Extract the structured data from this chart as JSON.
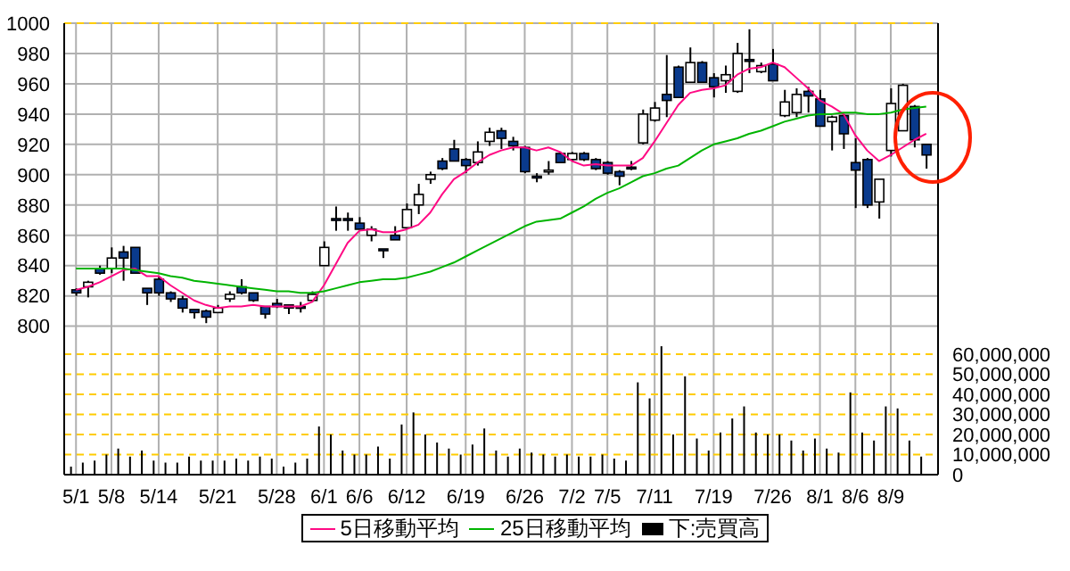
{
  "chart_data": {
    "type": "candlestick",
    "categories": [
      "5/1",
      null,
      null,
      "5/8",
      null,
      null,
      null,
      "5/14",
      null,
      null,
      null,
      null,
      "5/21",
      null,
      null,
      null,
      null,
      "5/28",
      null,
      null,
      null,
      "6/1",
      null,
      null,
      "6/6",
      null,
      null,
      null,
      "6/12",
      null,
      null,
      null,
      null,
      "6/19",
      null,
      null,
      null,
      null,
      "6/26",
      null,
      null,
      null,
      "7/2",
      null,
      null,
      "7/5",
      null,
      null,
      null,
      "7/11",
      null,
      null,
      null,
      null,
      "7/19",
      null,
      null,
      null,
      null,
      "7/26",
      null,
      null,
      null,
      "8/1",
      null,
      null,
      "8/6",
      null,
      null,
      "8/9",
      null,
      null,
      null
    ],
    "ohlc": [
      [
        824,
        825,
        820,
        822
      ],
      [
        826,
        830,
        819,
        829
      ],
      [
        838,
        840,
        834,
        835
      ],
      [
        838,
        852,
        835,
        845
      ],
      [
        849,
        853,
        830,
        845
      ],
      [
        852,
        852,
        835,
        835
      ],
      [
        825,
        825,
        814,
        822
      ],
      [
        831,
        833,
        820,
        822
      ],
      [
        822,
        823,
        816,
        818
      ],
      [
        818,
        820,
        809,
        812
      ],
      [
        811,
        811,
        805,
        809
      ],
      [
        810,
        811,
        802,
        806
      ],
      [
        809,
        814,
        809,
        812
      ],
      [
        818,
        823,
        816,
        821
      ],
      [
        826,
        831,
        821,
        822
      ],
      [
        822,
        822,
        816,
        817
      ],
      [
        813,
        813,
        805,
        808
      ],
      [
        815,
        818,
        812,
        813
      ],
      [
        814,
        814,
        808,
        812
      ],
      [
        813,
        816,
        809,
        812
      ],
      [
        817,
        823,
        816,
        821
      ],
      [
        840,
        856,
        840,
        852
      ],
      [
        871,
        879,
        863,
        870
      ],
      [
        871,
        875,
        863,
        870
      ],
      [
        868,
        872,
        864,
        864
      ],
      [
        860,
        866,
        856,
        864
      ],
      [
        851,
        851,
        845,
        850
      ],
      [
        860,
        866,
        857,
        857
      ],
      [
        865,
        881,
        865,
        877
      ],
      [
        880,
        894,
        874,
        887
      ],
      [
        897,
        902,
        894,
        900
      ],
      [
        909,
        911,
        903,
        904
      ],
      [
        917,
        923,
        909,
        909
      ],
      [
        910,
        911,
        901,
        906
      ],
      [
        908,
        922,
        906,
        915
      ],
      [
        922,
        931,
        919,
        928
      ],
      [
        929,
        931,
        917,
        924
      ],
      [
        922,
        925,
        916,
        919
      ],
      [
        918,
        919,
        901,
        902
      ],
      [
        899,
        901,
        895,
        898
      ],
      [
        902,
        909,
        900,
        903
      ],
      [
        914,
        915,
        908,
        908
      ],
      [
        910,
        915,
        909,
        914
      ],
      [
        914,
        915,
        909,
        910
      ],
      [
        910,
        911,
        903,
        904
      ],
      [
        908,
        909,
        900,
        901
      ],
      [
        902,
        903,
        893,
        899
      ],
      [
        905,
        909,
        903,
        904
      ],
      [
        921,
        943,
        920,
        940
      ],
      [
        936,
        948,
        935,
        944
      ],
      [
        953,
        979,
        938,
        949
      ],
      [
        971,
        972,
        951,
        951
      ],
      [
        961,
        984,
        961,
        974
      ],
      [
        974,
        975,
        961,
        961
      ],
      [
        964,
        967,
        951,
        958
      ],
      [
        962,
        972,
        954,
        966
      ],
      [
        955,
        987,
        954,
        980
      ],
      [
        976,
        996,
        967,
        975
      ],
      [
        968,
        974,
        967,
        972
      ],
      [
        973,
        983,
        962,
        962
      ],
      [
        939,
        956,
        938,
        948
      ],
      [
        941,
        957,
        938,
        953
      ],
      [
        955,
        958,
        941,
        952
      ],
      [
        950,
        956,
        932,
        932
      ],
      [
        935,
        939,
        916,
        938
      ],
      [
        939,
        940,
        917,
        927
      ],
      [
        908,
        924,
        878,
        903
      ],
      [
        910,
        911,
        878,
        880
      ],
      [
        882,
        897,
        871,
        897
      ],
      [
        916,
        957,
        912,
        947
      ],
      [
        929,
        960,
        929,
        959
      ],
      [
        945,
        946,
        918,
        923
      ],
      [
        920,
        920,
        904,
        913
      ]
    ],
    "series": [
      {
        "name": "5日移動平均",
        "type": "line",
        "color": "#ff0a84",
        "values": [
          824,
          826,
          829,
          833,
          837,
          838,
          833,
          833,
          827,
          822,
          817,
          814,
          812,
          813,
          813,
          814,
          813,
          813,
          813,
          813,
          816,
          827,
          841,
          855,
          863,
          864,
          862,
          862,
          864,
          867,
          875,
          887,
          897,
          902,
          908,
          913,
          916,
          918,
          918,
          916,
          918,
          915,
          909,
          906,
          907,
          906,
          906,
          906,
          911,
          922,
          934,
          946,
          954,
          956,
          957,
          959,
          966,
          970,
          971,
          974,
          971,
          964,
          957,
          949,
          945,
          940,
          926,
          916,
          909,
          913,
          918,
          923,
          927
        ]
      },
      {
        "name": "25日移動平均",
        "type": "line",
        "color": "#00b400",
        "values": [
          838,
          838,
          838,
          838,
          838,
          837,
          836,
          835,
          833,
          832,
          830,
          829,
          828,
          827,
          826,
          825,
          824,
          823,
          823,
          822,
          822,
          823,
          825,
          827,
          829,
          830,
          831,
          831,
          832,
          834,
          836,
          839,
          842,
          846,
          850,
          854,
          858,
          862,
          866,
          869,
          870,
          871,
          875,
          879,
          884,
          888,
          891,
          895,
          899,
          901,
          904,
          906,
          911,
          916,
          920,
          922,
          924,
          927,
          929,
          932,
          935,
          937,
          939,
          940,
          940,
          941,
          941,
          940,
          940,
          941,
          943,
          944,
          945
        ]
      },
      {
        "name": "下:売買高",
        "type": "bar",
        "axis": "y2",
        "color": "#000000",
        "values": [
          4000000,
          6000000,
          7000000,
          10000000,
          13000000,
          9000000,
          12000000,
          7000000,
          6000000,
          6000000,
          9000000,
          7000000,
          7000000,
          7000000,
          8000000,
          7000000,
          9000000,
          8000000,
          4000000,
          6000000,
          8000000,
          24000000,
          20000000,
          12000000,
          10000000,
          10000000,
          14000000,
          8000000,
          25000000,
          31000000,
          20000000,
          16000000,
          13000000,
          10000000,
          15000000,
          23000000,
          12000000,
          9000000,
          13000000,
          11000000,
          10000000,
          9000000,
          10000000,
          9000000,
          9000000,
          10000000,
          8000000,
          7000000,
          46000000,
          38000000,
          64000000,
          20000000,
          49000000,
          18000000,
          12000000,
          21000000,
          28000000,
          34000000,
          21000000,
          20000000,
          20000000,
          17000000,
          12000000,
          18000000,
          13000000,
          11000000,
          41000000,
          21000000,
          17000000,
          34000000,
          33000000,
          17000000,
          9000000
        ]
      }
    ],
    "ylim": [
      702,
      1000
    ],
    "yticks": [
      800,
      820,
      840,
      860,
      880,
      900,
      920,
      940,
      960,
      980,
      1000
    ],
    "y2lim": [
      0,
      225000000
    ],
    "y2ticks": [
      {
        "value": 0,
        "label": "0"
      },
      {
        "value": 10000000,
        "label": "10,000,000"
      },
      {
        "value": 20000000,
        "label": "20,000,000"
      },
      {
        "value": 30000000,
        "label": "30,000,000"
      },
      {
        "value": 40000000,
        "label": "40,000,000"
      },
      {
        "value": 50000000,
        "label": "50,000,000"
      },
      {
        "value": 60000000,
        "label": "60,000,000"
      }
    ],
    "grid": true,
    "legend": "bottom",
    "marker": "none"
  }
}
